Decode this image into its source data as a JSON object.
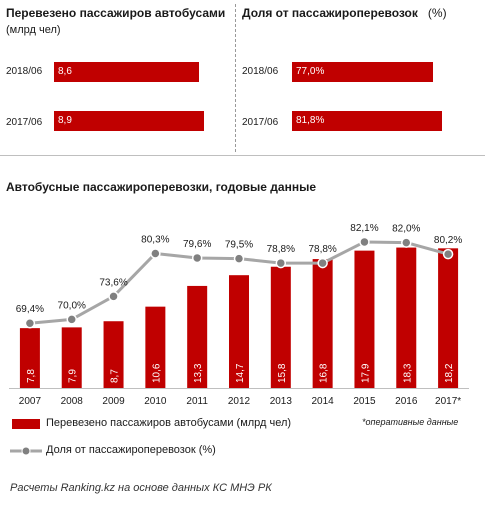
{
  "top_left": {
    "title": "Перевезено пассажиров  автобусами",
    "subtitle": "(млрд чел)",
    "rows": [
      {
        "label": "2018/06",
        "value": 8.6,
        "text": "8,6"
      },
      {
        "label": "2017/06",
        "value": 8.9,
        "text": "8,9"
      }
    ]
  },
  "top_right": {
    "title": "Доля от пассажироперевозок",
    "unit": "(%)",
    "rows": [
      {
        "label": "2018/06",
        "value": 77.0,
        "text": "77,0%"
      },
      {
        "label": "2017/06",
        "value": 81.8,
        "text": "81,8%"
      }
    ]
  },
  "chart_data": {
    "type": "bar",
    "title": "Автобусные  пассажироперевозки,  годовые данные",
    "categories": [
      "2007",
      "2008",
      "2009",
      "2010",
      "2011",
      "2012",
      "2013",
      "2014",
      "2015",
      "2016",
      "2017*"
    ],
    "series": [
      {
        "name": "Перевезено пассажиров автобусами (млрд чел)",
        "kind": "bar",
        "color": "#c00000",
        "values": [
          7.8,
          7.9,
          8.7,
          10.6,
          13.3,
          14.7,
          15.8,
          16.8,
          17.9,
          18.3,
          18.2
        ],
        "labels": [
          "7,8",
          "7,9",
          "8,7",
          "10,6",
          "13,3",
          "14,7",
          "15,8",
          "16,8",
          "17,9",
          "18,3",
          "18,2"
        ]
      },
      {
        "name": "Доля от пассажироперевозок (%)",
        "kind": "line",
        "color": "#a6a6a6",
        "values": [
          69.4,
          70.0,
          73.6,
          80.3,
          79.6,
          79.5,
          78.8,
          78.8,
          82.1,
          82.0,
          80.2
        ],
        "labels": [
          "69,4%",
          "70,0%",
          "73,6%",
          "80,3%",
          "79,6%",
          "79,5%",
          "78,8%",
          "78,8%",
          "82,1%",
          "82,0%",
          "80,2%"
        ]
      }
    ],
    "grid": false,
    "legend_position": "bottom-left"
  },
  "note": "*оперативные данные",
  "source": "Расчеты Ranking.kz на основе данных КС МНЭ РК"
}
